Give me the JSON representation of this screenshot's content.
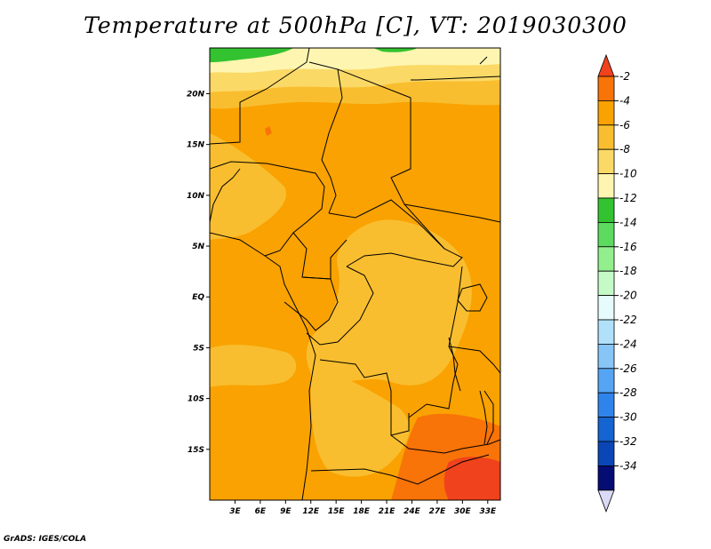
{
  "title": "Temperature at 500hPa [C], VT: 2019030300",
  "footer": "GrADS: IGES/COLA",
  "map": {
    "lat_ticks": [
      {
        "label": "20N",
        "lat": 20
      },
      {
        "label": "15N",
        "lat": 15
      },
      {
        "label": "10N",
        "lat": 10
      },
      {
        "label": "5N",
        "lat": 5
      },
      {
        "label": "EQ",
        "lat": 0
      },
      {
        "label": "5S",
        "lat": -5
      },
      {
        "label": "10S",
        "lat": -10
      },
      {
        "label": "15S",
        "lat": -15
      }
    ],
    "lon_ticks": [
      {
        "label": "3E",
        "lon": 3
      },
      {
        "label": "6E",
        "lon": 6
      },
      {
        "label": "9E",
        "lon": 9
      },
      {
        "label": "12E",
        "lon": 12
      },
      {
        "label": "15E",
        "lon": 15
      },
      {
        "label": "18E",
        "lon": 18
      },
      {
        "label": "21E",
        "lon": 21
      },
      {
        "label": "24E",
        "lon": 24
      },
      {
        "label": "27E",
        "lon": 27
      },
      {
        "label": "30E",
        "lon": 30
      },
      {
        "label": "33E",
        "lon": 33
      }
    ],
    "lon_range": [
      0,
      34.5
    ],
    "lat_range": [
      -20,
      24.5
    ]
  },
  "colorbar": {
    "labels": [
      "-2",
      "-4",
      "-6",
      "-8",
      "-10",
      "-12",
      "-14",
      "-16",
      "-18",
      "-20",
      "-22",
      "-24",
      "-26",
      "-28",
      "-30",
      "-32",
      "-34"
    ],
    "colors": [
      "#f0421d",
      "#f87308",
      "#f9a201",
      "#f9be2f",
      "#fbd966",
      "#fef5b0",
      "#34c330",
      "#5cdb5f",
      "#93ef8e",
      "#c5fac6",
      "#e6fbfc",
      "#b1e1fa",
      "#88c5f7",
      "#55a5f4",
      "#2f84ec",
      "#1464d1",
      "#0b46b7",
      "#050c74",
      "#dadaf7"
    ]
  }
}
